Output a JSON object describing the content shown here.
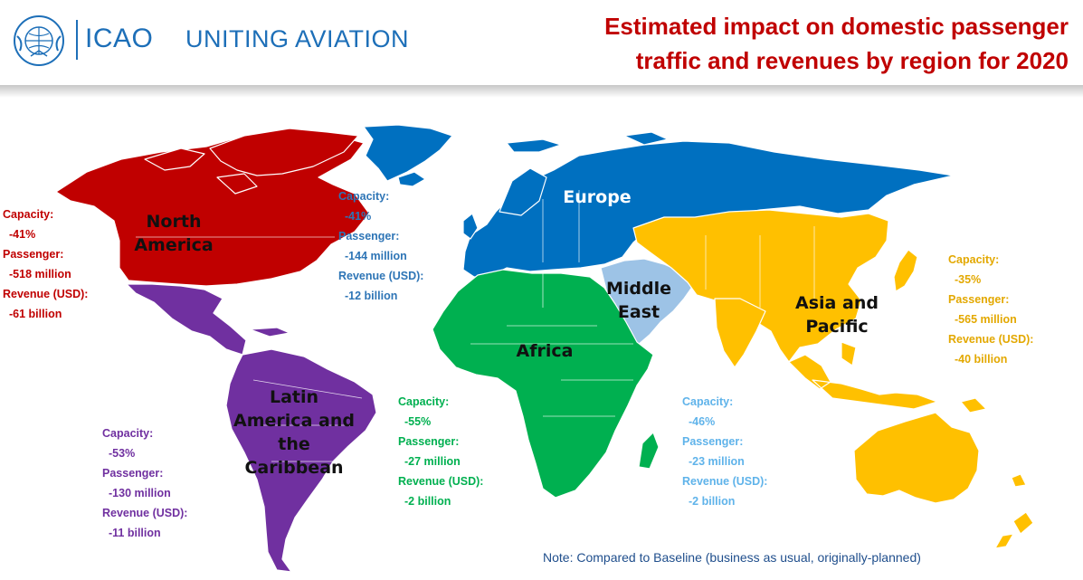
{
  "header": {
    "logo_acronym": "ICAO",
    "logo_tagline": "UNITING AVIATION",
    "title_line1": "Estimated impact on domestic passenger",
    "title_line2": "traffic and revenues by region for 2020"
  },
  "colors": {
    "north_america": "#c00000",
    "europe": "#0070c0",
    "middle_east": "#9dc3e6",
    "africa": "#00b050",
    "asia_pacific": "#ffc000",
    "latin_america": "#7030a0",
    "title": "#c00000",
    "logo": "#1d6fb8"
  },
  "regions": {
    "north_america": {
      "name_line1": "North",
      "name_line2": "America",
      "capacity_label": "Capacity:",
      "capacity": "-41%",
      "passenger_label": "Passenger:",
      "passenger": "-518 million",
      "revenue_label": "Revenue (USD):",
      "revenue": "-61 billion"
    },
    "europe": {
      "name_line1": "Europe",
      "capacity_label": "Capacity:",
      "capacity": "-41%",
      "passenger_label": "Passenger:",
      "passenger": "-144 million",
      "revenue_label": "Revenue (USD):",
      "revenue": "-12 billion"
    },
    "asia_pacific": {
      "name_line1": "Asia and",
      "name_line2": "Pacific",
      "capacity_label": "Capacity:",
      "capacity": "-35%",
      "passenger_label": "Passenger:",
      "passenger": "-565 million",
      "revenue_label": "Revenue (USD):",
      "revenue": "-40 billion"
    },
    "africa": {
      "name_line1": "Africa",
      "capacity_label": "Capacity:",
      "capacity": "-55%",
      "passenger_label": "Passenger:",
      "passenger": "-27 million",
      "revenue_label": "Revenue (USD):",
      "revenue": "-2 billion"
    },
    "middle_east": {
      "name_line1": "Middle",
      "name_line2": "East",
      "capacity_label": "Capacity:",
      "capacity": "-46%",
      "passenger_label": "Passenger:",
      "passenger": "-23 million",
      "revenue_label": "Revenue (USD):",
      "revenue": "-2 billion"
    },
    "latin_america": {
      "name_line1": "Latin",
      "name_line2": "America and",
      "name_line3": "the",
      "name_line4": "Caribbean",
      "capacity_label": "Capacity:",
      "capacity": "-53%",
      "passenger_label": "Passenger:",
      "passenger": "-130 million",
      "revenue_label": "Revenue (USD):",
      "revenue": "-11 billion"
    }
  },
  "note": "Note: Compared to Baseline (business as usual, originally-planned)"
}
